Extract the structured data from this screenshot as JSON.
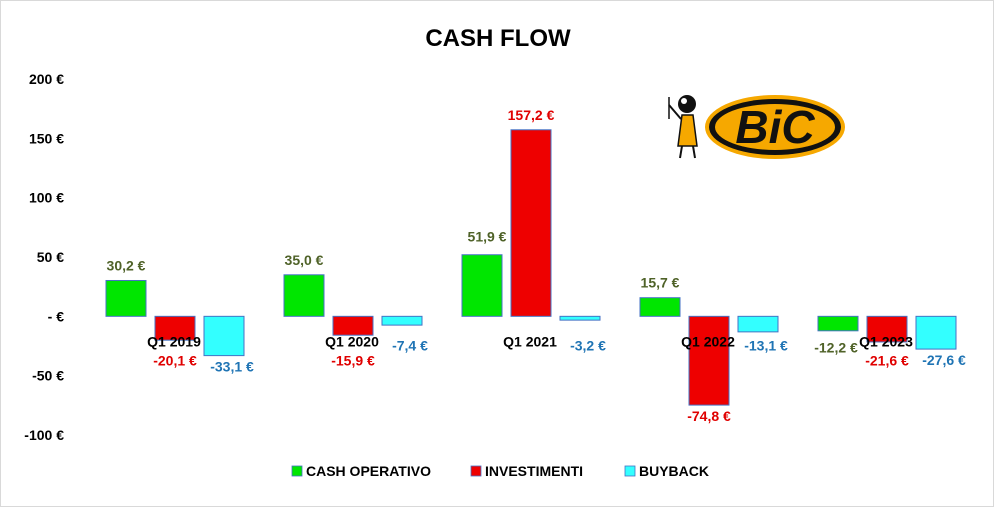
{
  "chart_data": {
    "type": "bar",
    "title": "CASH FLOW",
    "categories": [
      "Q1 2019",
      "Q1 2020",
      "Q1 2021",
      "Q1 2022",
      "Q1 2023"
    ],
    "series": [
      {
        "name": "CASH OPERATIVO",
        "values": [
          30.2,
          35.0,
          51.9,
          15.7,
          -12.2
        ],
        "labels": [
          "30,2 €",
          "35,0 €",
          "51,9 €",
          "15,7 €",
          "-12,2 €"
        ],
        "color": "#00E600",
        "label_color": "#4F6228"
      },
      {
        "name": "INVESTIMENTI",
        "values": [
          -20.1,
          -15.9,
          157.2,
          -74.8,
          -21.6
        ],
        "labels": [
          "-20,1 €",
          "-15,9 €",
          "157,2 €",
          "-74,8 €",
          "-21,6 €"
        ],
        "color": "#EE0000",
        "label_color": "#E00000"
      },
      {
        "name": "BUYBACK",
        "values": [
          -33.1,
          -7.4,
          -3.2,
          -13.1,
          -27.6
        ],
        "labels": [
          "-33,1 €",
          "-7,4 €",
          "-3,2 €",
          "-13,1 €",
          "-27,6 €"
        ],
        "color": "#33FFFF",
        "label_color": "#1F74B4"
      }
    ],
    "ylim": [
      -100,
      200
    ],
    "yticks": [
      200,
      150,
      100,
      50,
      0,
      -50,
      -100
    ],
    "ytick_labels": [
      "200 €",
      "150 €",
      "100 €",
      "50 €",
      "- €",
      "-50 €",
      "-100 €"
    ],
    "grid": false,
    "legend_position": "bottom"
  },
  "logo": {
    "text": "BiC",
    "colors": {
      "outer": "#F6A800",
      "band": "#111111",
      "inner": "#F6A800",
      "text": "#111111"
    }
  }
}
